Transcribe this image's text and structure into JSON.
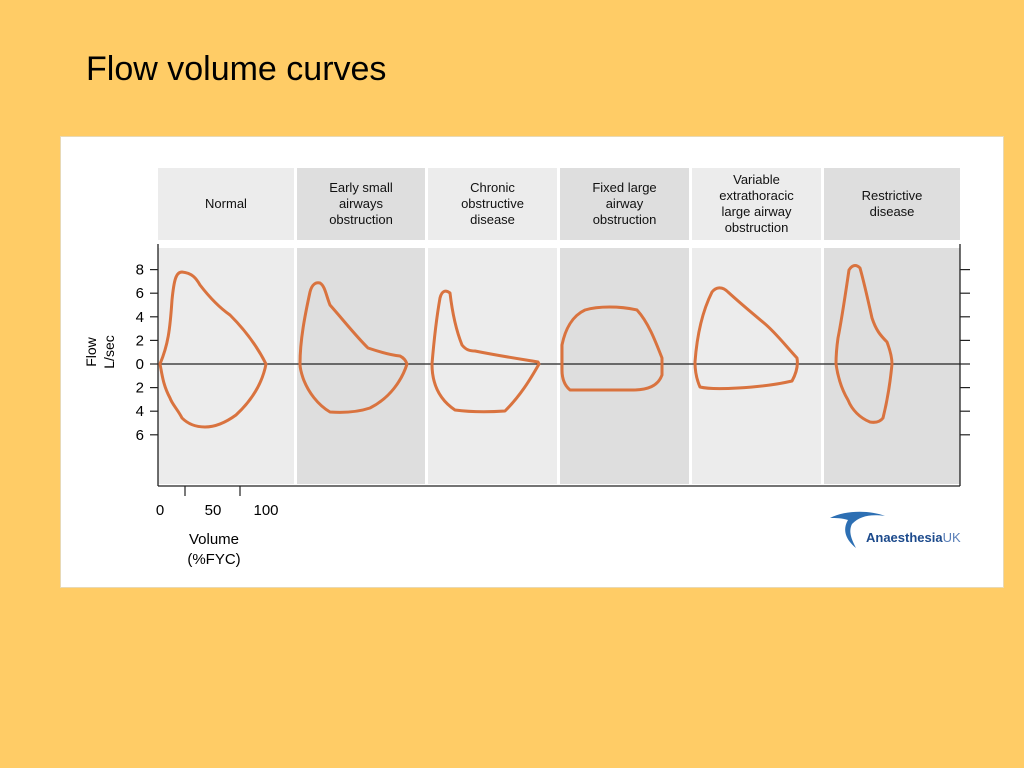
{
  "slide": {
    "title": "Flow volume curves"
  },
  "panels": [
    {
      "id": "normal",
      "label_lines": [
        "Normal"
      ],
      "shade": "light"
    },
    {
      "id": "early-small-airways",
      "label_lines": [
        "Early small",
        "airways",
        "obstruction"
      ],
      "shade": "dark"
    },
    {
      "id": "chronic-obstructive",
      "label_lines": [
        "Chronic",
        "obstructive",
        "disease"
      ],
      "shade": "light"
    },
    {
      "id": "fixed-large-airway",
      "label_lines": [
        "Fixed large",
        "airway",
        "obstruction"
      ],
      "shade": "dark"
    },
    {
      "id": "variable-extrathoracic",
      "label_lines": [
        "Variable",
        "extrathoracic",
        "large airway",
        "obstruction"
      ],
      "shade": "light"
    },
    {
      "id": "restrictive",
      "label_lines": [
        "Restrictive",
        "disease"
      ],
      "shade": "dark"
    }
  ],
  "y_axis": {
    "label_line1": "Flow",
    "label_line2": "L/sec",
    "ticks": [
      {
        "label": "8",
        "value": 8
      },
      {
        "label": "6",
        "value": 6
      },
      {
        "label": "4",
        "value": 4
      },
      {
        "label": "2",
        "value": 2
      },
      {
        "label": "0",
        "value": 0
      },
      {
        "label": "2",
        "value": -2
      },
      {
        "label": "4",
        "value": -4
      },
      {
        "label": "6",
        "value": -6
      }
    ]
  },
  "x_axis": {
    "label_line1": "Volume",
    "label_line2": "(%FYC)",
    "ticks": [
      {
        "label": "0",
        "value": 0
      },
      {
        "label": "50",
        "value": 50
      },
      {
        "label": "100",
        "value": 100
      }
    ]
  },
  "logo": {
    "name_bold": "Anaesthesia",
    "name_light": "UK"
  },
  "colors": {
    "background": "#ffcc66",
    "panel_light": "#ececec",
    "panel_dark": "#dedede",
    "curve": "#d9733f",
    "axis": "#222222",
    "logo_blue": "#1c4a8c"
  }
}
